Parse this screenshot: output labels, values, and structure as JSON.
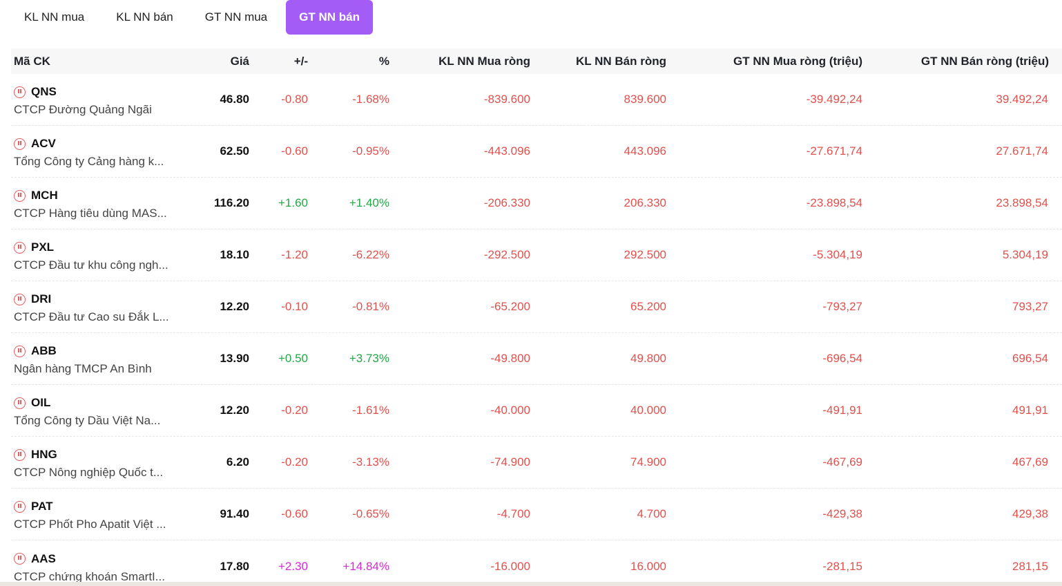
{
  "tabs": [
    {
      "label": "KL NN mua",
      "active": false
    },
    {
      "label": "KL NN bán",
      "active": false
    },
    {
      "label": "GT NN mua",
      "active": false
    },
    {
      "label": "GT NN bán",
      "active": true
    }
  ],
  "columns": {
    "symbol": "Mã CK",
    "price": "Giá",
    "change": "+/-",
    "percent": "%",
    "kl_buy": "KL NN Mua ròng",
    "kl_sell": "KL NN Bán ròng",
    "gt_buy": "GT NN Mua ròng (triệu)",
    "gt_sell": "GT NN Bán ròng (triệu)"
  },
  "rows": [
    {
      "code": "QNS",
      "name": "CTCP Đường Quảng Ngãi",
      "price": "46.80",
      "change": "-0.80",
      "percent": "-1.68%",
      "kl_buy": "-839.600",
      "kl_sell": "839.600",
      "gt_buy": "-39.492,24",
      "gt_sell": "39.492,24",
      "trend": "down"
    },
    {
      "code": "ACV",
      "name": "Tổng Công ty Cảng hàng k...",
      "price": "62.50",
      "change": "-0.60",
      "percent": "-0.95%",
      "kl_buy": "-443.096",
      "kl_sell": "443.096",
      "gt_buy": "-27.671,74",
      "gt_sell": "27.671,74",
      "trend": "down"
    },
    {
      "code": "MCH",
      "name": "CTCP Hàng tiêu dùng MAS...",
      "price": "116.20",
      "change": "+1.60",
      "percent": "+1.40%",
      "kl_buy": "-206.330",
      "kl_sell": "206.330",
      "gt_buy": "-23.898,54",
      "gt_sell": "23.898,54",
      "trend": "up"
    },
    {
      "code": "PXL",
      "name": "CTCP Đầu tư khu công ngh...",
      "price": "18.10",
      "change": "-1.20",
      "percent": "-6.22%",
      "kl_buy": "-292.500",
      "kl_sell": "292.500",
      "gt_buy": "-5.304,19",
      "gt_sell": "5.304,19",
      "trend": "down"
    },
    {
      "code": "DRI",
      "name": "CTCP Đầu tư Cao su Đắk L...",
      "price": "12.20",
      "change": "-0.10",
      "percent": "-0.81%",
      "kl_buy": "-65.200",
      "kl_sell": "65.200",
      "gt_buy": "-793,27",
      "gt_sell": "793,27",
      "trend": "down"
    },
    {
      "code": "ABB",
      "name": "Ngân hàng TMCP An Bình",
      "price": "13.90",
      "change": "+0.50",
      "percent": "+3.73%",
      "kl_buy": "-49.800",
      "kl_sell": "49.800",
      "gt_buy": "-696,54",
      "gt_sell": "696,54",
      "trend": "up"
    },
    {
      "code": "OIL",
      "name": "Tổng Công ty Dầu Việt Na...",
      "price": "12.20",
      "change": "-0.20",
      "percent": "-1.61%",
      "kl_buy": "-40.000",
      "kl_sell": "40.000",
      "gt_buy": "-491,91",
      "gt_sell": "491,91",
      "trend": "down"
    },
    {
      "code": "HNG",
      "name": "CTCP Nông nghiệp Quốc t...",
      "price": "6.20",
      "change": "-0.20",
      "percent": "-3.13%",
      "kl_buy": "-74.900",
      "kl_sell": "74.900",
      "gt_buy": "-467,69",
      "gt_sell": "467,69",
      "trend": "down"
    },
    {
      "code": "PAT",
      "name": "CTCP Phốt Pho Apatit Việt ...",
      "price": "91.40",
      "change": "-0.60",
      "percent": "-0.65%",
      "kl_buy": "-4.700",
      "kl_sell": "4.700",
      "gt_buy": "-429,38",
      "gt_sell": "429,38",
      "trend": "down"
    },
    {
      "code": "AAS",
      "name": "CTCP chứng khoán SmartI...",
      "price": "17.80",
      "change": "+2.30",
      "percent": "+14.84%",
      "kl_buy": "-16.000",
      "kl_sell": "16.000",
      "gt_buy": "-281,15",
      "gt_sell": "281,15",
      "trend": "ceiling"
    }
  ],
  "colors": {
    "accent": "#a45cf6",
    "down": "#e2504c",
    "up": "#22a845",
    "ceiling": "#d42ad4"
  },
  "icons": {
    "row_status": "clock-pause-icon"
  }
}
